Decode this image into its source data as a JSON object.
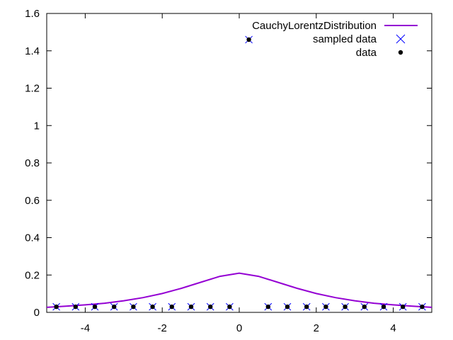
{
  "chart_data": {
    "type": "line",
    "title": "",
    "xlabel": "",
    "ylabel": "",
    "xlim": [
      -5,
      5
    ],
    "ylim": [
      0,
      1.6
    ],
    "grid": false,
    "legend_position": "top-right",
    "x_ticks": [
      {
        "value": -4,
        "label": "-4"
      },
      {
        "value": -2,
        "label": "-2"
      },
      {
        "value": 0,
        "label": "0"
      },
      {
        "value": 2,
        "label": "2"
      },
      {
        "value": 4,
        "label": "4"
      }
    ],
    "y_ticks": [
      {
        "value": 0,
        "label": "0"
      },
      {
        "value": 0.2,
        "label": "0.2"
      },
      {
        "value": 0.4,
        "label": "0.4"
      },
      {
        "value": 0.6,
        "label": "0.6"
      },
      {
        "value": 0.8,
        "label": "0.8"
      },
      {
        "value": 1,
        "label": "1"
      },
      {
        "value": 1.2,
        "label": "1.2"
      },
      {
        "value": 1.4,
        "label": "1.4"
      },
      {
        "value": 1.6,
        "label": "1.6"
      }
    ],
    "series": [
      {
        "name": "CauchyLorentzDistribution",
        "style": "line",
        "color": "#9400d3",
        "x": [
          -5,
          -4.5,
          -4,
          -3.5,
          -3,
          -2.5,
          -2,
          -1.5,
          -1,
          -0.5,
          0,
          0.5,
          1,
          1.5,
          2,
          2.5,
          3,
          3.5,
          4,
          4.5,
          5
        ],
        "y": [
          0.027,
          0.033,
          0.04,
          0.049,
          0.062,
          0.079,
          0.101,
          0.129,
          0.161,
          0.193,
          0.21,
          0.193,
          0.161,
          0.129,
          0.101,
          0.079,
          0.062,
          0.049,
          0.04,
          0.033,
          0.027
        ]
      },
      {
        "name": "sampled data",
        "style": "points",
        "marker": "x",
        "color": "#0000ff",
        "x": [
          -4.75,
          -4.25,
          -3.75,
          -3.25,
          -2.75,
          -2.25,
          -1.75,
          -1.25,
          -0.75,
          -0.25,
          0.25,
          0.75,
          1.25,
          1.75,
          2.25,
          2.75,
          3.25,
          3.75,
          4.25,
          4.75
        ],
        "y": [
          0.03,
          0.03,
          0.03,
          0.03,
          0.03,
          0.03,
          0.03,
          0.03,
          0.03,
          0.03,
          1.46,
          0.03,
          0.03,
          0.03,
          0.03,
          0.03,
          0.03,
          0.03,
          0.03,
          0.03
        ]
      },
      {
        "name": "data",
        "style": "points",
        "marker": "dot",
        "color": "#000000",
        "x": [
          -4.75,
          -4.25,
          -3.75,
          -3.25,
          -2.75,
          -2.25,
          -1.75,
          -1.25,
          -0.75,
          -0.25,
          0.25,
          0.75,
          1.25,
          1.75,
          2.25,
          2.75,
          3.25,
          3.75,
          4.25,
          4.75
        ],
        "y": [
          0.03,
          0.03,
          0.03,
          0.03,
          0.03,
          0.03,
          0.03,
          0.03,
          0.03,
          0.03,
          1.46,
          0.03,
          0.03,
          0.03,
          0.03,
          0.03,
          0.03,
          0.03,
          0.03,
          0.03
        ]
      }
    ]
  }
}
